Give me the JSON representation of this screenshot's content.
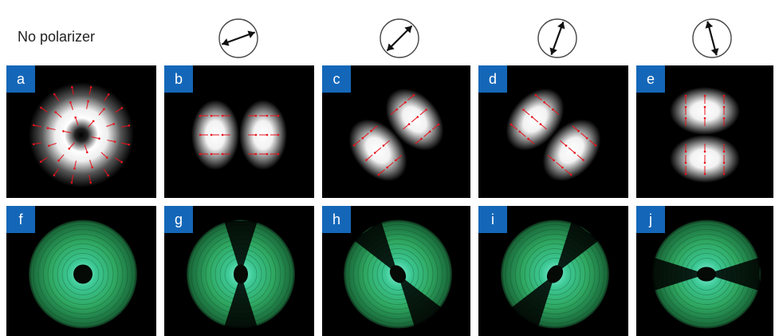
{
  "header": {
    "no_polarizer_label": "No polarizer"
  },
  "polarizer_icons": [
    {
      "name": "polarizer-icon-1",
      "angle_deg": -20
    },
    {
      "name": "polarizer-icon-2",
      "angle_deg": -45
    },
    {
      "name": "polarizer-icon-3",
      "angle_deg": -70
    },
    {
      "name": "polarizer-icon-4",
      "angle_deg": -105
    }
  ],
  "panels": {
    "top_row": [
      {
        "label": "a",
        "pattern": "donut",
        "lobe_axis_deg": 0
      },
      {
        "label": "b",
        "pattern": "two-lobe",
        "lobe_axis_deg": 0
      },
      {
        "label": "c",
        "pattern": "two-lobe",
        "lobe_axis_deg": -40
      },
      {
        "label": "d",
        "pattern": "two-lobe",
        "lobe_axis_deg": 40
      },
      {
        "label": "e",
        "pattern": "two-lobe",
        "lobe_axis_deg": 90
      }
    ],
    "bottom_row": [
      {
        "label": "f",
        "pattern": "donut",
        "lobe_axis_deg": 0
      },
      {
        "label": "g",
        "pattern": "two-lobe",
        "lobe_axis_deg": 0
      },
      {
        "label": "h",
        "pattern": "two-lobe",
        "lobe_axis_deg": -35
      },
      {
        "label": "i",
        "pattern": "two-lobe",
        "lobe_axis_deg": 35
      },
      {
        "label": "j",
        "pattern": "two-lobe",
        "lobe_axis_deg": 90
      }
    ]
  },
  "colors": {
    "label_tag": "#1467b8",
    "arrow": "#e8121b",
    "experiment_green": "#2fa862",
    "experiment_cyan": "#7ff0d8"
  }
}
